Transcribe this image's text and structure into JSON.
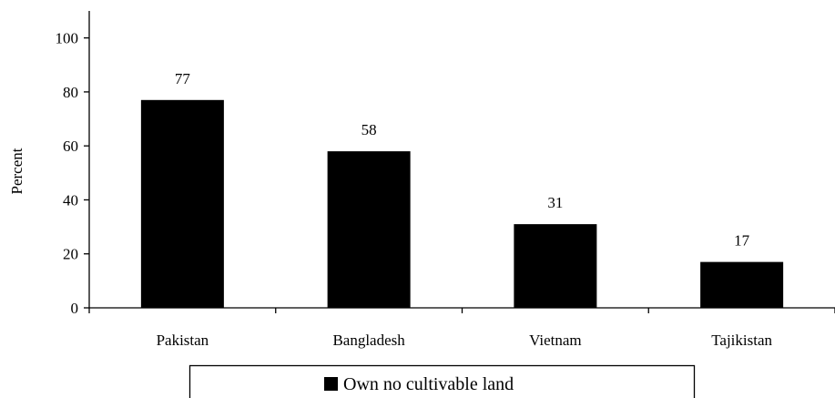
{
  "chart_data": {
    "type": "bar",
    "categories": [
      "Pakistan",
      "Bangladesh",
      "Vietnam",
      "Tajikistan"
    ],
    "series": [
      {
        "name": "Own no cultivable land",
        "values": [
          77,
          58,
          31,
          17
        ],
        "color": "#000000"
      }
    ],
    "data_labels": [
      "77",
      "58",
      "31",
      "17"
    ],
    "ylabel": "Percent",
    "xlabel": "",
    "ylim": [
      0,
      110
    ],
    "yticks": [
      0,
      20,
      40,
      60,
      80,
      100
    ],
    "ytick_labels": [
      "0",
      "20",
      "40",
      "60",
      "80",
      "100"
    ],
    "grid": false,
    "legend_position": "bottom"
  },
  "legend": {
    "label": "Own no cultivable land"
  }
}
